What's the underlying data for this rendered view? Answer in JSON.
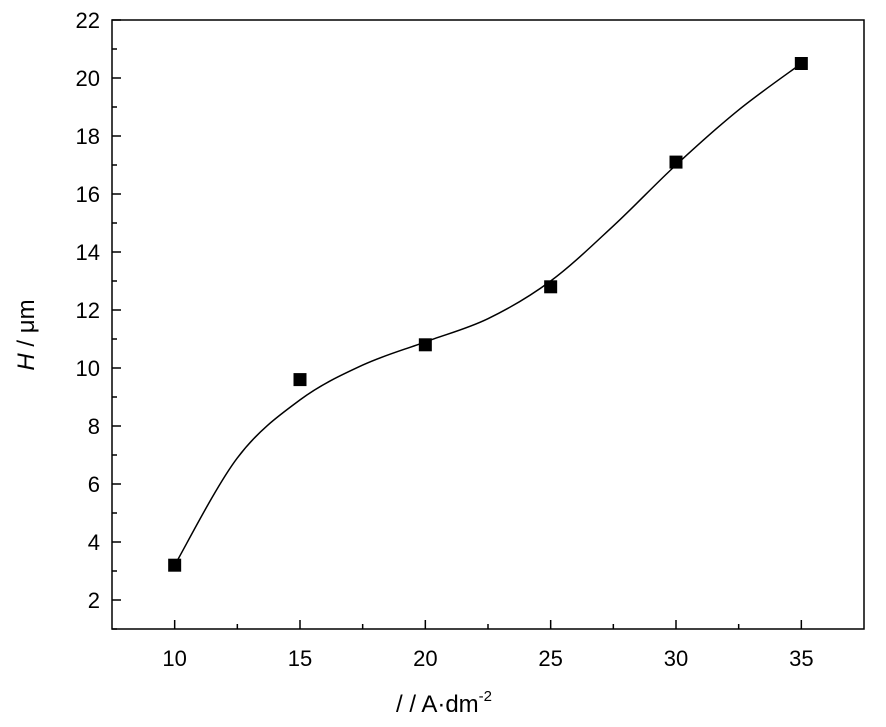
{
  "chart_data": {
    "type": "scatter",
    "xlabel": "/ / A·dm",
    "xlabel_superscript": "-2",
    "ylabel_italic": "H",
    "ylabel_rest": " / μm",
    "xlim": [
      7.5,
      37.5
    ],
    "ylim": [
      1,
      22
    ],
    "x_ticks": [
      10,
      15,
      20,
      25,
      30,
      35
    ],
    "y_ticks": [
      2,
      4,
      6,
      8,
      10,
      12,
      14,
      16,
      18,
      20,
      22
    ],
    "grid": false,
    "legend": "none",
    "series": [
      {
        "marker": "square",
        "color": "#000000",
        "x": [
          10,
          15,
          20,
          25,
          30,
          35
        ],
        "y": [
          3.2,
          9.6,
          10.8,
          12.8,
          17.1,
          20.5
        ]
      }
    ],
    "fit_curve": {
      "style": "smooth line",
      "color": "#000000",
      "x": [
        10,
        12.5,
        15,
        17.5,
        20,
        22.5,
        25,
        27.5,
        30,
        32.5,
        35
      ],
      "y": [
        3.2,
        6.9,
        8.9,
        10.1,
        10.9,
        11.7,
        13.0,
        14.9,
        17.0,
        18.9,
        20.5
      ]
    }
  }
}
